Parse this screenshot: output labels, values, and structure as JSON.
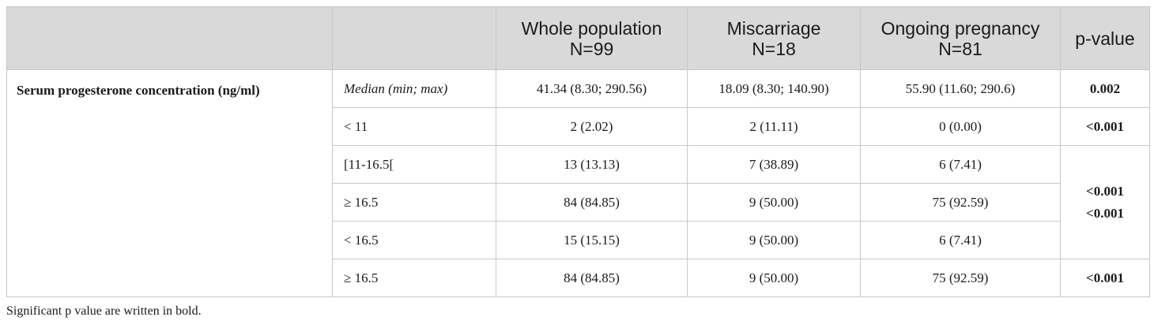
{
  "table": {
    "headers": [
      {
        "lines": [
          ""
        ]
      },
      {
        "lines": [
          ""
        ]
      },
      {
        "lines": [
          "Whole population",
          "N=99"
        ]
      },
      {
        "lines": [
          "Miscarriage",
          "N=18"
        ]
      },
      {
        "lines": [
          "Ongoing pregnancy",
          "N=81"
        ]
      },
      {
        "lines": [
          "p-value"
        ]
      }
    ],
    "row_label": "Serum progesterone concentration (ng/ml)",
    "rows": [
      {
        "sub": "Median (min; max)",
        "whole": "41.34 (8.30; 290.56)",
        "miscarriage": "18.09 (8.30; 140.90)",
        "ongoing": "55.90 (11.60; 290.6)"
      },
      {
        "sub": "< 11",
        "whole": "2 (2.02)",
        "miscarriage": "2 (11.11)",
        "ongoing": "0 (0.00)"
      },
      {
        "sub": "[11-16.5[",
        "whole": "13 (13.13)",
        "miscarriage": "7 (38.89)",
        "ongoing": "6 (7.41)"
      },
      {
        "sub": "≥ 16.5",
        "whole": "84 (84.85)",
        "miscarriage": "9 (50.00)",
        "ongoing": "75 (92.59)"
      },
      {
        "sub": "< 16.5",
        "whole": "15 (15.15)",
        "miscarriage": "9 (50.00)",
        "ongoing": "6 (7.41)"
      },
      {
        "sub": "≥ 16.5",
        "whole": "84 (84.85)",
        "miscarriage": "9 (50.00)",
        "ongoing": "75 (92.59)"
      }
    ],
    "pvalues": {
      "median": "0.002",
      "lt11": "<0.001",
      "merged": [
        "<0.001",
        "<0.001"
      ],
      "last": "<0.001"
    }
  },
  "footnote": "Significant p value are written in bold."
}
